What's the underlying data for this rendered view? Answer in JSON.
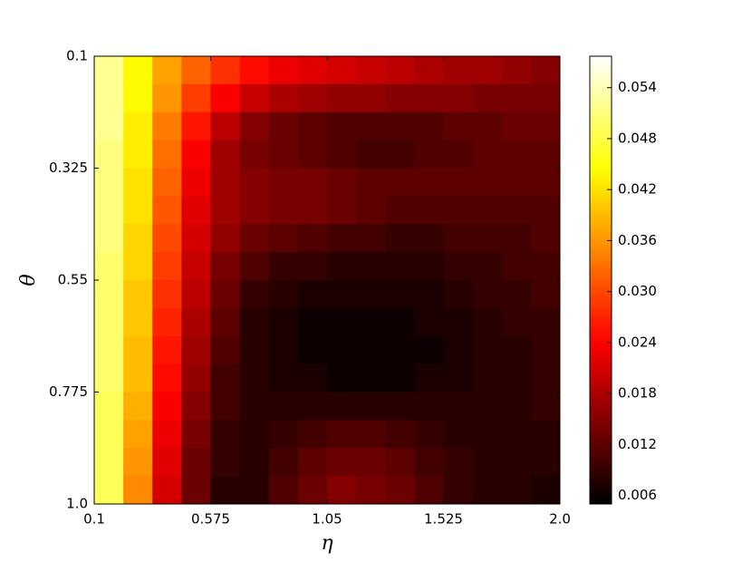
{
  "chart_data": {
    "type": "heatmap",
    "xlabel": "η",
    "ylabel": "θ",
    "colormap": "hot",
    "xlim": [
      0.1,
      2.0
    ],
    "xticks": [
      0.1,
      0.575,
      1.05,
      1.525,
      {
        "value": 2,
        "label": "2.0"
      }
    ],
    "ylim": [
      0.1,
      1.0
    ],
    "y_inverted": true,
    "yticks": [
      0.1,
      0.325,
      0.55,
      0.775,
      {
        "value": 1,
        "label": "1.0"
      }
    ],
    "clim": [
      0.005,
      0.0577
    ],
    "cticks": [
      0.054,
      0.048,
      0.042,
      0.036,
      {
        "value": 0.03,
        "label": "0.030"
      },
      0.024,
      0.018,
      0.012,
      0.006
    ],
    "z": [
      [
        0.052,
        0.044,
        0.037,
        0.032,
        0.028,
        0.025,
        0.023,
        0.022,
        0.021,
        0.02,
        0.019,
        0.018,
        0.017,
        0.017,
        0.016,
        0.015
      ],
      [
        0.052,
        0.044,
        0.036,
        0.029,
        0.024,
        0.02,
        0.018,
        0.017,
        0.016,
        0.016,
        0.015,
        0.015,
        0.015,
        0.014,
        0.014,
        0.014
      ],
      [
        0.052,
        0.043,
        0.034,
        0.026,
        0.019,
        0.015,
        0.013,
        0.012,
        0.011,
        0.011,
        0.011,
        0.011,
        0.012,
        0.012,
        0.013,
        0.013
      ],
      [
        0.051,
        0.043,
        0.033,
        0.024,
        0.017,
        0.014,
        0.013,
        0.012,
        0.011,
        0.01,
        0.01,
        0.011,
        0.011,
        0.012,
        0.012,
        0.012
      ],
      [
        0.051,
        0.042,
        0.032,
        0.023,
        0.017,
        0.015,
        0.014,
        0.014,
        0.013,
        0.012,
        0.012,
        0.012,
        0.012,
        0.012,
        0.012,
        0.012
      ],
      [
        0.051,
        0.042,
        0.031,
        0.022,
        0.017,
        0.015,
        0.014,
        0.014,
        0.013,
        0.012,
        0.011,
        0.011,
        0.011,
        0.011,
        0.011,
        0.011
      ],
      [
        0.051,
        0.041,
        0.03,
        0.021,
        0.016,
        0.013,
        0.012,
        0.011,
        0.01,
        0.01,
        0.009,
        0.009,
        0.01,
        0.01,
        0.01,
        0.011
      ],
      [
        0.05,
        0.041,
        0.029,
        0.02,
        0.014,
        0.011,
        0.009,
        0.009,
        0.008,
        0.008,
        0.008,
        0.008,
        0.009,
        0.009,
        0.01,
        0.01
      ],
      [
        0.05,
        0.04,
        0.028,
        0.019,
        0.013,
        0.009,
        0.008,
        0.007,
        0.007,
        0.007,
        0.007,
        0.007,
        0.008,
        0.009,
        0.009,
        0.01
      ],
      [
        0.05,
        0.04,
        0.027,
        0.018,
        0.012,
        0.008,
        0.007,
        0.006,
        0.006,
        0.006,
        0.006,
        0.007,
        0.007,
        0.008,
        0.009,
        0.009
      ],
      [
        0.05,
        0.039,
        0.026,
        0.017,
        0.011,
        0.008,
        0.007,
        0.006,
        0.006,
        0.006,
        0.006,
        0.006,
        0.007,
        0.008,
        0.008,
        0.009
      ],
      [
        0.05,
        0.039,
        0.025,
        0.016,
        0.01,
        0.008,
        0.007,
        0.007,
        0.006,
        0.006,
        0.006,
        0.007,
        0.007,
        0.008,
        0.008,
        0.009
      ],
      [
        0.049,
        0.038,
        0.024,
        0.015,
        0.01,
        0.008,
        0.008,
        0.008,
        0.008,
        0.008,
        0.008,
        0.008,
        0.008,
        0.008,
        0.008,
        0.009
      ],
      [
        0.049,
        0.037,
        0.023,
        0.014,
        0.009,
        0.008,
        0.009,
        0.01,
        0.011,
        0.011,
        0.01,
        0.009,
        0.008,
        0.008,
        0.008,
        0.008
      ],
      [
        0.049,
        0.036,
        0.022,
        0.013,
        0.009,
        0.008,
        0.01,
        0.012,
        0.013,
        0.013,
        0.012,
        0.01,
        0.009,
        0.008,
        0.008,
        0.008
      ],
      [
        0.049,
        0.035,
        0.021,
        0.013,
        0.008,
        0.008,
        0.011,
        0.013,
        0.015,
        0.014,
        0.013,
        0.011,
        0.009,
        0.008,
        0.008,
        0.007
      ]
    ]
  }
}
